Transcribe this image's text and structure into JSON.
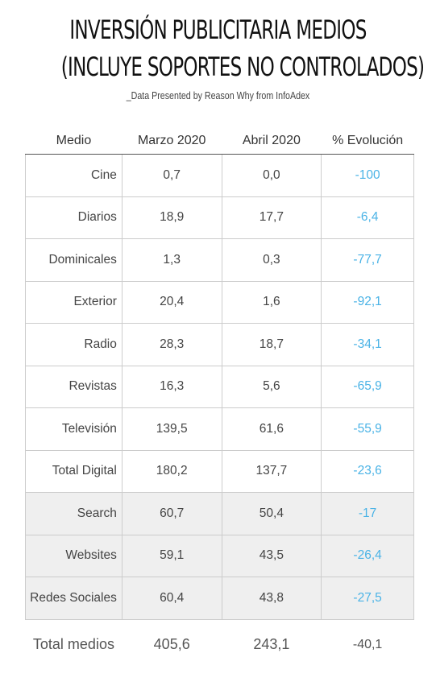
{
  "title_line1": "INVERSIÓN PUBLICITARIA MEDIOS",
  "title_line2": "(INCLUYE SOPORTES NO CONTROLADOS)",
  "subtitle": "_Data Presented by Reason Why from InfoAdex",
  "colors": {
    "evolution": "#4ab3e6",
    "subrow_background": "#efefef"
  },
  "chart_data": {
    "type": "table",
    "columns": [
      "Medio",
      "Marzo 2020",
      "Abril 2020",
      "% Evolución"
    ],
    "rows": [
      [
        "Cine",
        "0,7",
        "0,0",
        "-100"
      ],
      [
        "Diarios",
        "18,9",
        "17,7",
        "-6,4"
      ],
      [
        "Dominicales",
        "1,3",
        "0,3",
        "-77,7"
      ],
      [
        "Exterior",
        "20,4",
        "1,6",
        "-92,1"
      ],
      [
        "Radio",
        "28,3",
        "18,7",
        "-34,1"
      ],
      [
        "Revistas",
        "16,3",
        "5,6",
        "-65,9"
      ],
      [
        "Televisión",
        "139,5",
        "61,6",
        "-55,9"
      ],
      [
        "Total Digital",
        "180,2",
        "137,7",
        "-23,6"
      ],
      [
        "Search",
        "60,7",
        "50,4",
        "-17"
      ],
      [
        "Websites",
        "59,1",
        "43,5",
        "-26,4"
      ],
      [
        "Redes Sociales",
        "60,4",
        "43,8",
        "-27,5"
      ]
    ],
    "digital_subrows": [
      "Search",
      "Websites",
      "Redes Sociales"
    ],
    "total": [
      "Total medios",
      "405,6",
      "243,1",
      "-40,1"
    ]
  }
}
